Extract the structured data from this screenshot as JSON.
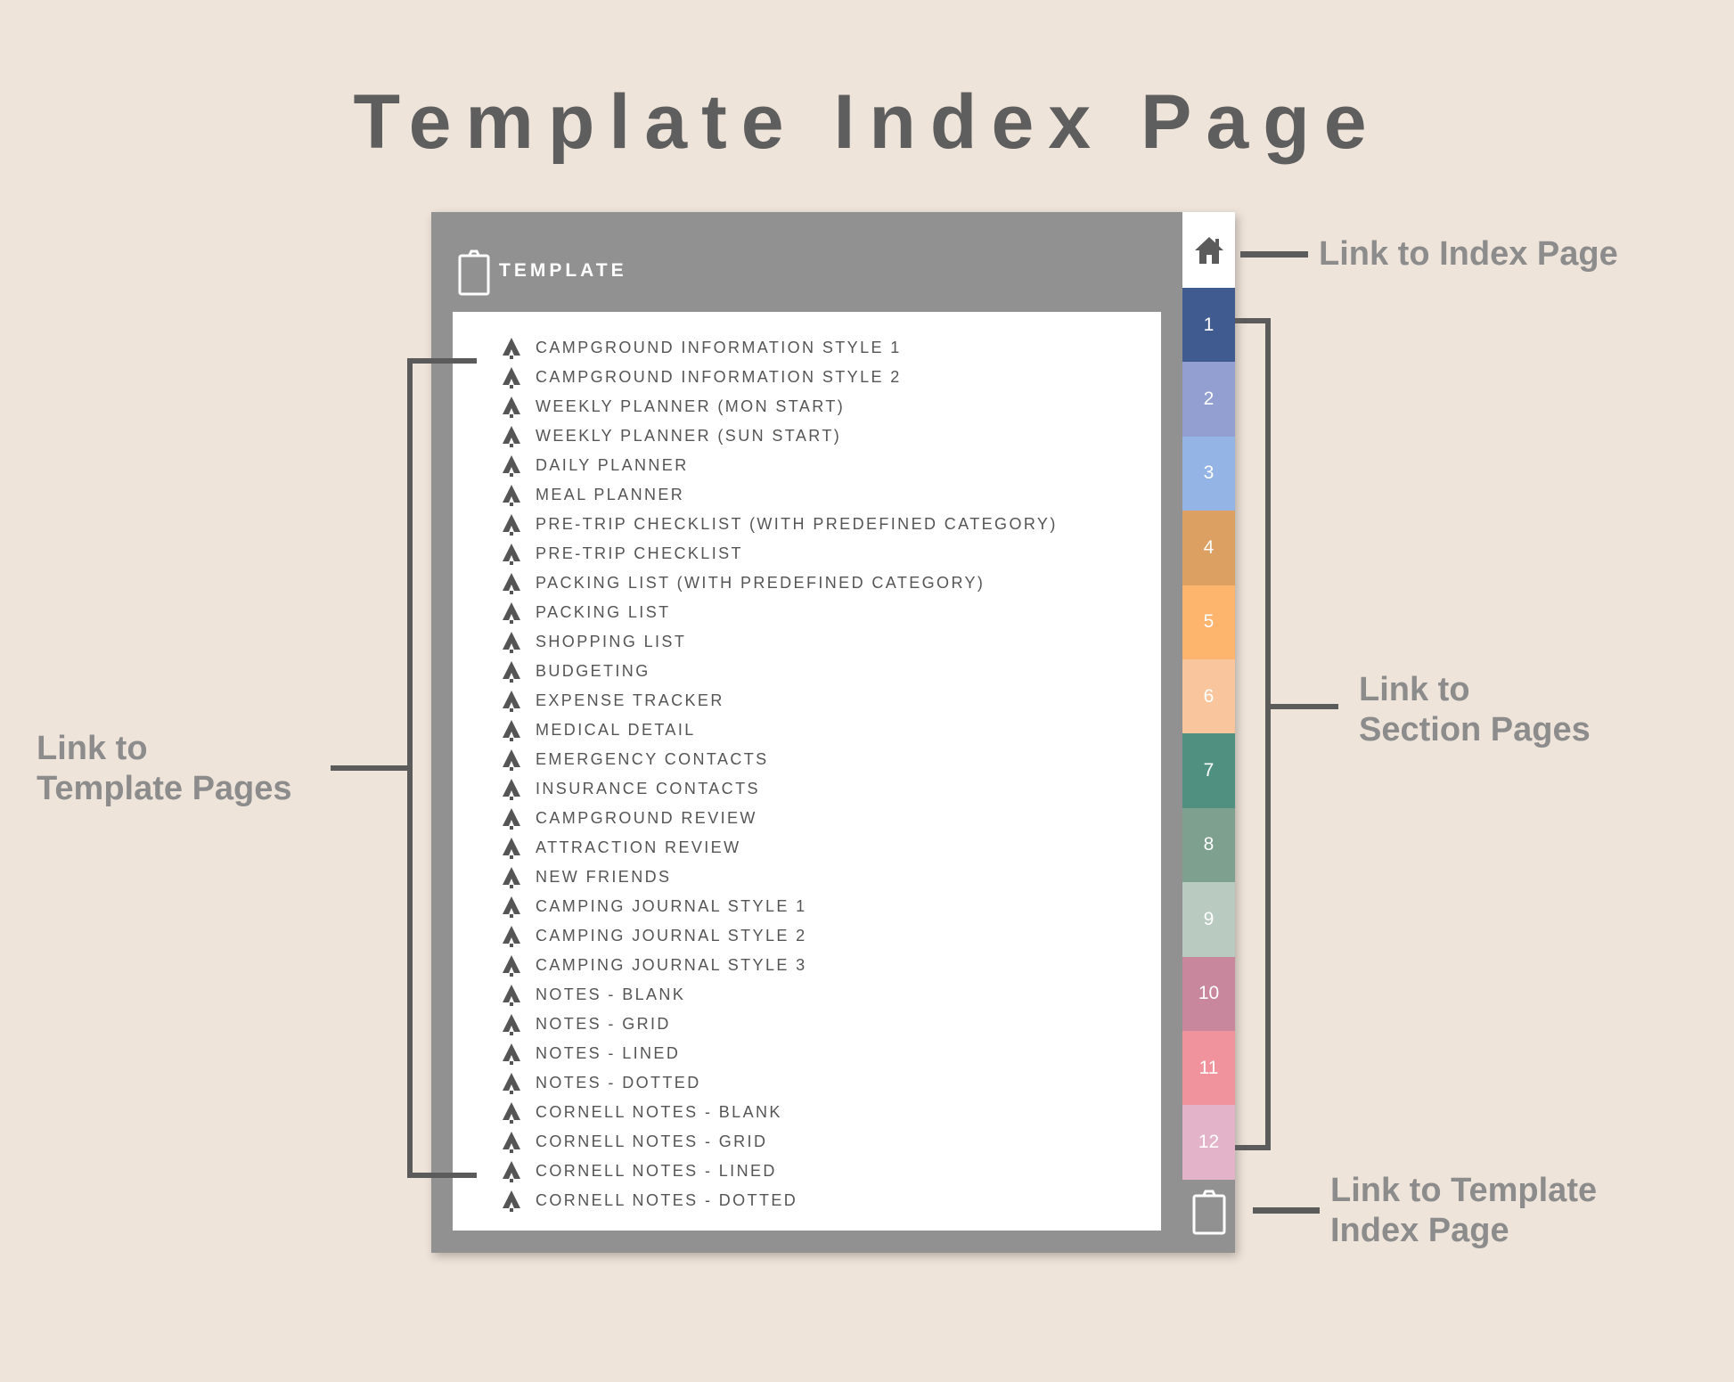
{
  "title": "Template Index Page",
  "card": {
    "header_icon": "clipboard-icon",
    "header_label": "TEMPLATE",
    "item_icon": "pine-tree-icon",
    "items": [
      "CAMPGROUND INFORMATION STYLE 1",
      "CAMPGROUND INFORMATION STYLE 2",
      "WEEKLY PLANNER (MON START)",
      "WEEKLY PLANNER (SUN START)",
      "DAILY PLANNER",
      "MEAL PLANNER",
      "PRE-TRIP CHECKLIST (WITH PREDEFINED CATEGORY)",
      "PRE-TRIP CHECKLIST",
      "PACKING LIST (WITH PREDEFINED CATEGORY)",
      "PACKING LIST",
      "SHOPPING LIST",
      "BUDGETING",
      "EXPENSE TRACKER",
      "MEDICAL DETAIL",
      "EMERGENCY CONTACTS",
      "INSURANCE CONTACTS",
      "CAMPGROUND REVIEW",
      "ATTRACTION REVIEW",
      "NEW FRIENDS",
      "CAMPING JOURNAL STYLE 1",
      "CAMPING JOURNAL STYLE 2",
      "CAMPING JOURNAL STYLE 3",
      "NOTES - BLANK",
      "NOTES - GRID",
      "NOTES - LINED",
      "NOTES - DOTTED",
      "CORNELL NOTES - BLANK",
      "CORNELL NOTES - GRID",
      "CORNELL NOTES - LINED",
      "CORNELL NOTES - DOTTED"
    ]
  },
  "tabs": {
    "home_icon": "home-icon",
    "bottom_icon": "clipboard-icon",
    "sections": [
      {
        "label": "1",
        "color": "#3f5b8f"
      },
      {
        "label": "2",
        "color": "#939fd0"
      },
      {
        "label": "3",
        "color": "#94b4e6"
      },
      {
        "label": "4",
        "color": "#dca063"
      },
      {
        "label": "5",
        "color": "#fdb46d"
      },
      {
        "label": "6",
        "color": "#f9c59c"
      },
      {
        "label": "7",
        "color": "#4f9080"
      },
      {
        "label": "8",
        "color": "#7ea08f"
      },
      {
        "label": "9",
        "color": "#b9cbc0"
      },
      {
        "label": "10",
        "color": "#c8879c"
      },
      {
        "label": "11",
        "color": "#f0939c"
      },
      {
        "label": "12",
        "color": "#e3b4c9"
      }
    ]
  },
  "annotations": {
    "index_page": "Link to Index Page",
    "section_pages_1": "Link to",
    "section_pages_2": "Section Pages",
    "template_pages_1": "Link to",
    "template_pages_2": "Template Pages",
    "template_index_1": "Link to Template",
    "template_index_2": "Index Page"
  }
}
